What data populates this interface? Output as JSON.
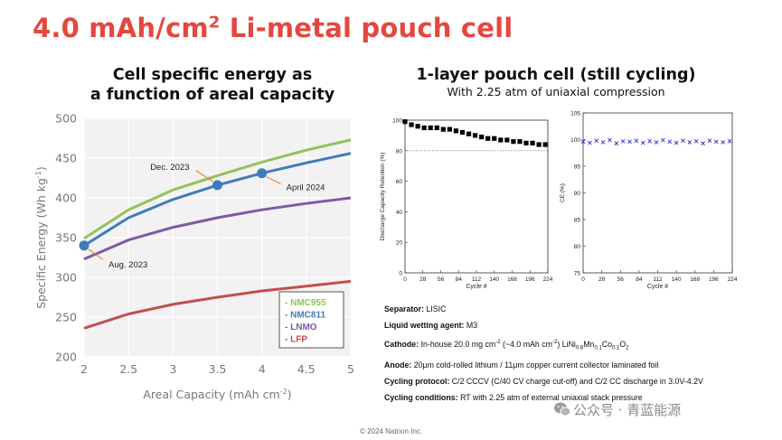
{
  "title": {
    "main": "4.0 mAh/cm",
    "sup": "2",
    "rest": " Li-metal pouch cell"
  },
  "left_heading": {
    "line1": "Cell specific energy as",
    "line2": "a function of areal capacity"
  },
  "right_heading": {
    "line1": "1-layer pouch cell (still cycling)",
    "line2": "With 2.25 atm of uniaxial compression"
  },
  "colors": {
    "title": "#e4473f",
    "nmc955": "#93c25b",
    "nmc811": "#3f7cb8",
    "lnmo": "#7d5aa6",
    "lfp": "#c0504d",
    "annotation": "#e07b2a",
    "ce": "#2a2ad0"
  },
  "chart_data": [
    {
      "type": "line",
      "xlabel": "Areal Capacity (mAh cm",
      "xlabel_sup": "-2",
      "xlabel_end": ")",
      "ylabel": "Specific Energy (Wh kg",
      "ylabel_sup": "-1",
      "ylabel_end": ")",
      "xlim": [
        2,
        5
      ],
      "ylim": [
        200,
        500
      ],
      "xticks": [
        "2",
        "2.5",
        "3",
        "3.5",
        "4",
        "4.5",
        "5"
      ],
      "yticks": [
        "200",
        "250",
        "300",
        "350",
        "400",
        "450",
        "500"
      ],
      "grid": true,
      "legend": "bottom-right",
      "series": [
        {
          "name": "NMC955",
          "color": "#93c25b",
          "x": [
            2,
            2.5,
            3,
            3.5,
            4,
            4.5,
            5
          ],
          "y": [
            349,
            385,
            410,
            428,
            445,
            460,
            473
          ]
        },
        {
          "name": "NMC811",
          "color": "#3f7cb8",
          "x": [
            2,
            2.5,
            3,
            3.5,
            4,
            4.5,
            5
          ],
          "y": [
            340,
            375,
            398,
            416,
            431,
            444,
            456
          ]
        },
        {
          "name": "LNMO",
          "color": "#7d5aa6",
          "x": [
            2,
            2.5,
            3,
            3.5,
            4,
            4.5,
            5
          ],
          "y": [
            323,
            347,
            363,
            375,
            385,
            393,
            400
          ]
        },
        {
          "name": "LFP",
          "color": "#c0504d",
          "x": [
            2,
            2.5,
            3,
            3.5,
            4,
            4.5,
            5
          ],
          "y": [
            236,
            254,
            266,
            275,
            283,
            289,
            295
          ]
        }
      ],
      "points": [
        {
          "label": "Aug. 2023",
          "x": 2,
          "y": 340
        },
        {
          "label": "Dec. 2023",
          "x": 3.5,
          "y": 416
        },
        {
          "label": "April 2024",
          "x": 4,
          "y": 431
        }
      ]
    },
    {
      "type": "scatter",
      "xlabel": "Cycle #",
      "ylabel": "Discharge Capacity Retention (%)",
      "xlim": [
        0,
        224
      ],
      "ylim": [
        0,
        100
      ],
      "xticks": [
        "0",
        "28",
        "56",
        "84",
        "112",
        "140",
        "168",
        "196",
        "224"
      ],
      "yticks": [
        "0",
        "20",
        "40",
        "60",
        "80",
        "100"
      ],
      "reference_line": 80,
      "series": [
        {
          "x": [
            0,
            10,
            20,
            30,
            40,
            50,
            60,
            70,
            80,
            90,
            100,
            110,
            120,
            130,
            140,
            150,
            160,
            170,
            180,
            190,
            200,
            210,
            220
          ],
          "y": [
            99,
            97,
            96,
            95,
            95,
            95,
            94,
            94,
            93,
            92,
            91,
            90,
            89,
            88,
            88,
            87,
            87,
            86,
            86,
            85,
            85,
            84,
            84
          ]
        }
      ]
    },
    {
      "type": "scatter",
      "xlabel": "Cycle #",
      "ylabel": "CE (%)",
      "xlim": [
        0,
        224
      ],
      "ylim": [
        75,
        105
      ],
      "xticks": [
        "0",
        "28",
        "56",
        "84",
        "112",
        "140",
        "168",
        "196",
        "224"
      ],
      "yticks": [
        "75",
        "80",
        "85",
        "90",
        "95",
        "100",
        "105"
      ],
      "series": [
        {
          "x": [
            0,
            10,
            20,
            30,
            40,
            50,
            60,
            70,
            80,
            90,
            100,
            110,
            120,
            130,
            140,
            150,
            160,
            170,
            180,
            190,
            200,
            210,
            220
          ],
          "y": [
            99.6,
            99.4,
            99.8,
            99.5,
            99.9,
            99.3,
            99.7,
            99.6,
            99.8,
            99.4,
            99.7,
            99.5,
            99.9,
            99.6,
            99.4,
            99.8,
            99.5,
            99.7,
            99.3,
            99.8,
            99.6,
            99.5,
            99.7
          ]
        }
      ]
    }
  ],
  "info": [
    {
      "label": "Separator:",
      "text": " LISIC"
    },
    {
      "label": "Liquid wetting agent:",
      "text": " M3"
    },
    {
      "label": "Cathode:",
      "text": " In-house 20.0 mg cm",
      "cathode": true
    },
    {
      "label": "Anode:",
      "text": " 20μm cold-rolled lithium / 11μm copper current collector laminated foil"
    },
    {
      "label": "Cycling protocol:",
      "text": " C/2 CCCV (C/40 CV charge cut-off) and C/2 CC discharge in 3.0V-4.2V"
    },
    {
      "label": "Cycling conditions:",
      "text": " RT with 2.25 atm of external uniaxial stack pressure"
    }
  ],
  "cathode_parts": {
    "a": "-2",
    "b": " (~4.0 mAh cm",
    "c": "-2",
    "d": ") LiNi",
    "e": "0.8",
    "f": "Mn",
    "g": "0.1",
    "h": "Co",
    "i": "0.1",
    "j": "O",
    "k": "2"
  },
  "watermark": "公众号 · 青蓝能源",
  "watermark_icon": "wechat-icon",
  "copyright": "© 2024 Natrion Inc."
}
